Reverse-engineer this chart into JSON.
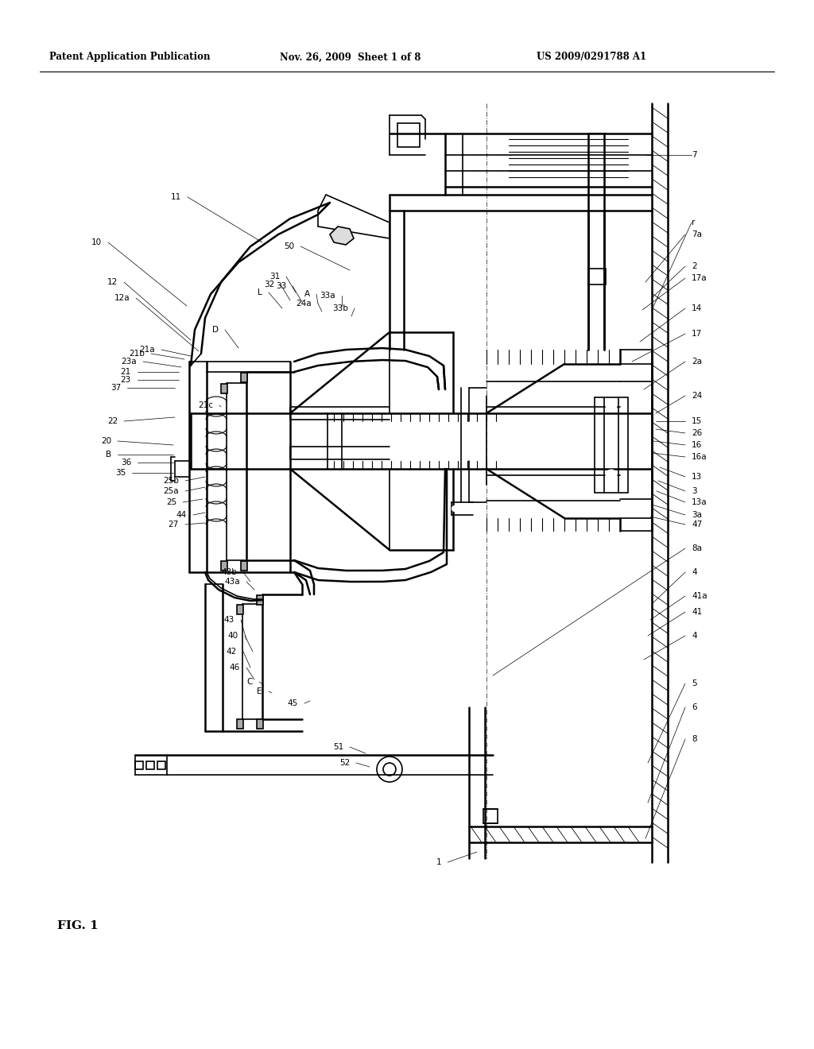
{
  "background_color": "#ffffff",
  "header_text_left": "Patent Application Publication",
  "header_text_mid": "Nov. 26, 2009  Sheet 1 of 8",
  "header_text_right": "US 2009/0291788 A1",
  "fig_label": "FIG. 1",
  "line_color": "#000000",
  "hatch_color": "#000000"
}
